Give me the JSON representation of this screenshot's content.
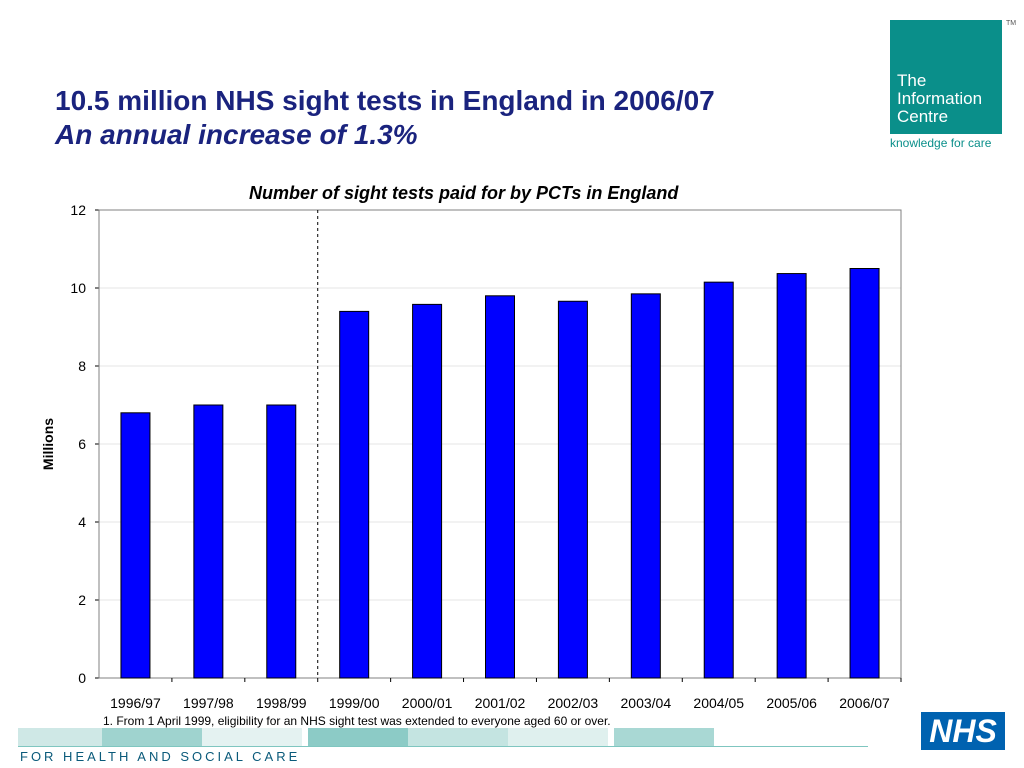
{
  "header": {
    "title": "10.5 million NHS sight tests in England in 2006/07",
    "subtitle": "An annual increase of 1.3%"
  },
  "logo": {
    "lines": [
      "The",
      "Information",
      "Centre"
    ],
    "tagline": "knowledge for care",
    "tm": "TM",
    "color": "#0a8f8a"
  },
  "chart_data": {
    "type": "bar",
    "title": "Number of sight tests paid for by PCTs in England",
    "xlabel": "",
    "ylabel": "Millions",
    "ylim": [
      0,
      12
    ],
    "yticks": [
      0,
      2,
      4,
      6,
      8,
      10,
      12
    ],
    "categories": [
      "1996/97",
      "1997/98",
      "1998/99",
      "1999/00",
      "2000/01",
      "2001/02",
      "2002/03",
      "2003/04",
      "2004/05",
      "2005/06",
      "2006/07"
    ],
    "values": [
      6.8,
      7.0,
      7.0,
      9.4,
      9.58,
      9.8,
      9.66,
      9.85,
      10.15,
      10.37,
      10.5
    ],
    "bar_color": "#0000ff",
    "divider_after": "1998/99",
    "footnote": "1.  From 1 April 1999, eligibility for an NHS sight test was extended to everyone aged 60 or over."
  },
  "footer": {
    "text": "FOR HEALTH AND SOCIAL CARE",
    "nhs_logo": "NHS"
  }
}
